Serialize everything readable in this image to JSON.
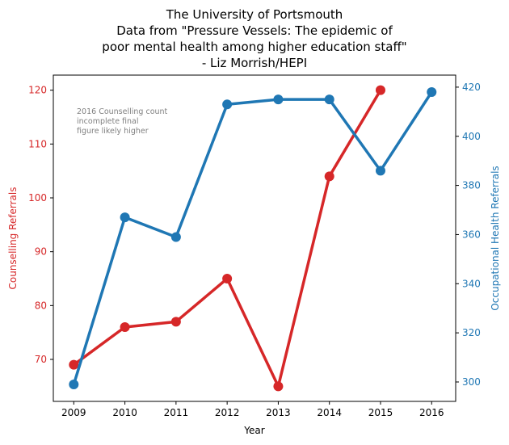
{
  "title_lines": [
    "The University of Portsmouth",
    "Data from \"Pressure Vessels: The epidemic of",
    "poor mental health among higher education staff\"",
    "- Liz Morrish/HEPI"
  ],
  "colors": {
    "counselling": "#d62728",
    "occupational": "#1f77b4",
    "note": "#808080"
  },
  "chart_data": {
    "type": "line",
    "title": "The University of Portsmouth\nData from \"Pressure Vessels: The epidemic of\npoor mental health among higher education staff\"\n- Liz Morrish/HEPI",
    "xlabel": "Year",
    "x_ticks": [
      "2009",
      "2010",
      "2011",
      "2012",
      "2013",
      "2014",
      "2015",
      "2016"
    ],
    "xlim": [
      2008.6,
      2016.47
    ],
    "left_axis": {
      "label": "Counselling Referrals",
      "ylim": [
        62.2,
        122.8
      ],
      "ticks": [
        "70",
        "80",
        "90",
        "100",
        "110",
        "120"
      ]
    },
    "right_axis": {
      "label": "Occupational Health Referrals",
      "ylim": [
        292.1,
        424.9
      ],
      "ticks": [
        "300",
        "320",
        "340",
        "360",
        "380",
        "400",
        "420"
      ]
    },
    "series": [
      {
        "name": "Counselling Referrals",
        "axis": "left",
        "x": [
          2009,
          2010,
          2011,
          2012,
          2013,
          2014,
          2015
        ],
        "values": [
          69,
          76,
          77,
          85,
          65,
          104,
          120
        ]
      },
      {
        "name": "Occupational Health Referrals",
        "axis": "right",
        "x": [
          2009,
          2010,
          2011,
          2012,
          2013,
          2014,
          2015,
          2016
        ],
        "values": [
          299,
          367,
          359,
          413,
          415,
          415,
          386,
          418
        ]
      }
    ],
    "annotation": [
      "2016 Counselling count",
      "incomplete final",
      "figure likely higher"
    ],
    "grid": false
  }
}
